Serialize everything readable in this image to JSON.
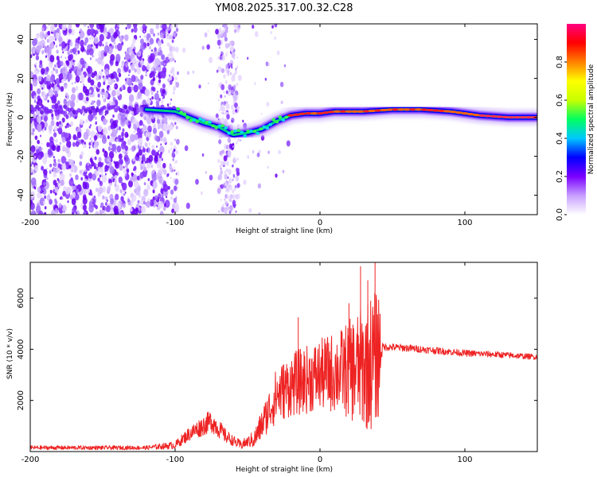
{
  "title": "YM08.2025.317.00.32.C28",
  "chart_data": [
    {
      "type": "heatmap",
      "name": "spectrogram",
      "xlabel": "Height of straight line (km)",
      "ylabel": "Frequency (Hz)",
      "xlim": [
        -200,
        150
      ],
      "ylim": [
        -50,
        48
      ],
      "xticks": [
        -200,
        -100,
        0,
        100
      ],
      "yticks": [
        -40,
        -20,
        0,
        20,
        40
      ],
      "colorbar": {
        "label": "Normalized spectral amplitude",
        "range": [
          0,
          1
        ],
        "ticks": [
          "0.0",
          "0.2",
          "0.4",
          "0.6",
          "0.8"
        ],
        "tick_values": [
          0.0,
          0.2,
          0.4,
          0.6,
          0.8
        ],
        "colors": [
          "#ffffff",
          "#c8a0ff",
          "#7a00ff",
          "#0000ff",
          "#00c8ff",
          "#00ff60",
          "#c8ff00",
          "#ffff00",
          "#ff8000",
          "#ff0000",
          "#ff0080"
        ]
      },
      "ridge": [
        {
          "x": -120,
          "y": 4
        },
        {
          "x": -100,
          "y": 3
        },
        {
          "x": -90,
          "y": 0
        },
        {
          "x": -80,
          "y": -3
        },
        {
          "x": -70,
          "y": -5
        },
        {
          "x": -60,
          "y": -9
        },
        {
          "x": -50,
          "y": -8
        },
        {
          "x": -40,
          "y": -6
        },
        {
          "x": -30,
          "y": -2
        },
        {
          "x": -20,
          "y": 1
        },
        {
          "x": -10,
          "y": 2
        },
        {
          "x": 0,
          "y": 2
        },
        {
          "x": 10,
          "y": 3
        },
        {
          "x": 20,
          "y": 3
        },
        {
          "x": 30,
          "y": 3
        },
        {
          "x": 50,
          "y": 4
        },
        {
          "x": 70,
          "y": 4
        },
        {
          "x": 90,
          "y": 3
        },
        {
          "x": 110,
          "y": 1
        },
        {
          "x": 130,
          "y": 0
        },
        {
          "x": 150,
          "y": 0
        }
      ]
    },
    {
      "type": "line",
      "name": "snr",
      "xlabel": "Height of straight line (km)",
      "ylabel": "SNR (10 * v/v)",
      "xlim": [
        -200,
        150
      ],
      "ylim": [
        0,
        7400
      ],
      "xticks": [
        -200,
        -100,
        0,
        100
      ],
      "yticks": [
        2000,
        4000,
        6000
      ],
      "color": "#ee2222",
      "trend": [
        {
          "x": -200,
          "y": 150
        },
        {
          "x": -120,
          "y": 150
        },
        {
          "x": -100,
          "y": 250
        },
        {
          "x": -90,
          "y": 700
        },
        {
          "x": -75,
          "y": 1200
        },
        {
          "x": -65,
          "y": 600
        },
        {
          "x": -55,
          "y": 250
        },
        {
          "x": -45,
          "y": 500
        },
        {
          "x": -38,
          "y": 1300
        },
        {
          "x": -30,
          "y": 2200
        },
        {
          "x": -20,
          "y": 2600
        },
        {
          "x": -10,
          "y": 2800
        },
        {
          "x": 0,
          "y": 3000
        },
        {
          "x": 10,
          "y": 3100
        },
        {
          "x": 20,
          "y": 3200
        },
        {
          "x": 30,
          "y": 3300
        },
        {
          "x": 38,
          "y": 3600
        },
        {
          "x": 42,
          "y": 4100
        },
        {
          "x": 60,
          "y": 4050
        },
        {
          "x": 80,
          "y": 3950
        },
        {
          "x": 100,
          "y": 3850
        },
        {
          "x": 120,
          "y": 3800
        },
        {
          "x": 150,
          "y": 3700
        }
      ],
      "noise_envelope": [
        {
          "x": -200,
          "y": 80
        },
        {
          "x": -120,
          "y": 80
        },
        {
          "x": -100,
          "y": 150
        },
        {
          "x": -85,
          "y": 350
        },
        {
          "x": -75,
          "y": 450
        },
        {
          "x": -60,
          "y": 200
        },
        {
          "x": -50,
          "y": 200
        },
        {
          "x": -40,
          "y": 600
        },
        {
          "x": -30,
          "y": 1100
        },
        {
          "x": -15,
          "y": 1300
        },
        {
          "x": 0,
          "y": 1400
        },
        {
          "x": 15,
          "y": 1700
        },
        {
          "x": 25,
          "y": 2200
        },
        {
          "x": 35,
          "y": 2700
        },
        {
          "x": 41,
          "y": 2600
        },
        {
          "x": 43,
          "y": 150
        },
        {
          "x": 150,
          "y": 110
        }
      ],
      "peaks": [
        {
          "x": -15,
          "y": 5250
        },
        {
          "x": 20,
          "y": 5800
        },
        {
          "x": 28,
          "y": 7250
        },
        {
          "x": 33,
          "y": 6700
        },
        {
          "x": 38,
          "y": 7400
        }
      ]
    }
  ]
}
